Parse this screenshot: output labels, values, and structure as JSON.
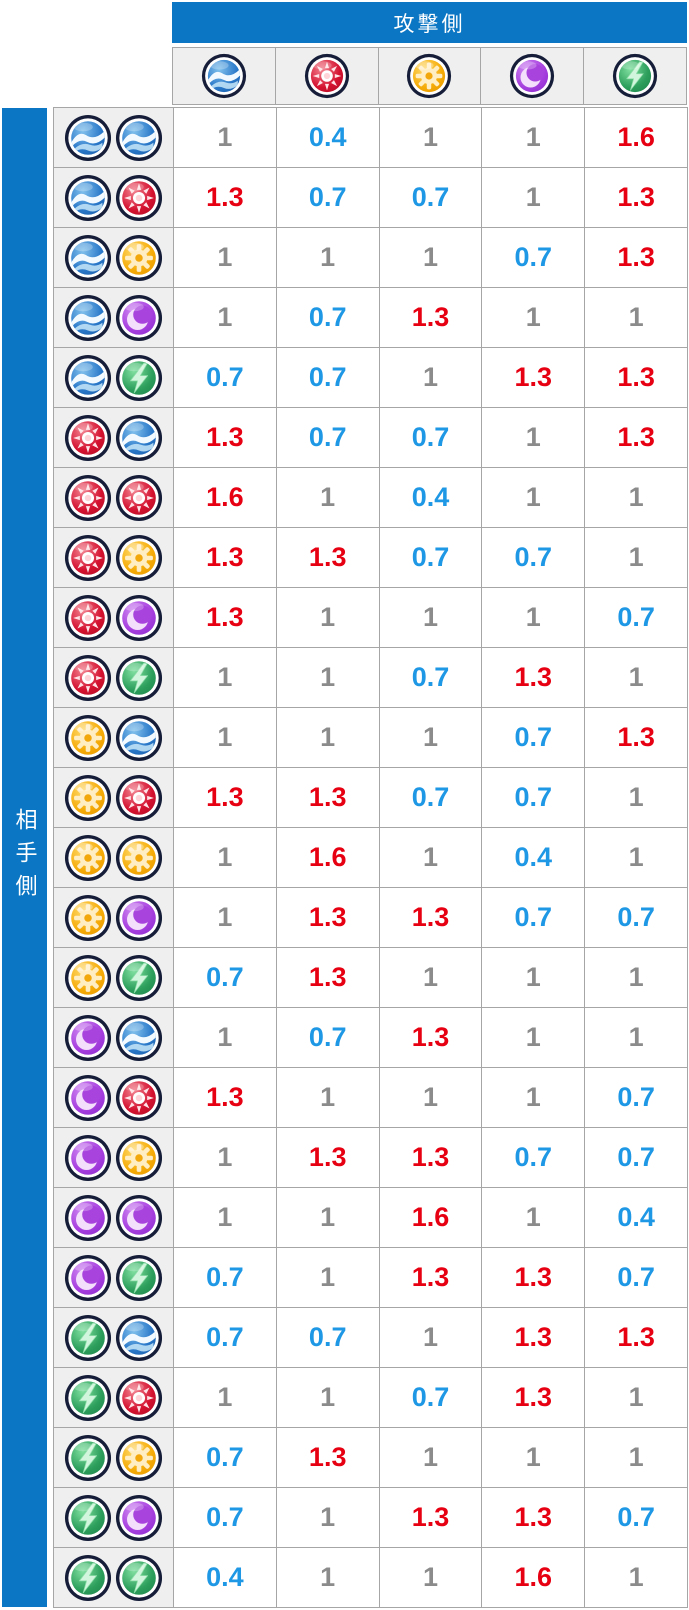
{
  "header": {
    "attack_label": "攻撃側",
    "opponent_label": "相手側"
  },
  "colors": {
    "up": "#e60012",
    "down": "#1e97e5",
    "neutral": "#8b8b8b",
    "accent_blue": "#0b76c3",
    "grid_border": "#a6a6a6",
    "header_cell_bg": "#efefef"
  },
  "table": {
    "columns": [
      "water",
      "fire",
      "gear",
      "moon",
      "lightning"
    ],
    "rows": [
      {
        "defender": [
          "water",
          "water"
        ],
        "values": [
          "1",
          "0.4",
          "1",
          "1",
          "1.6"
        ]
      },
      {
        "defender": [
          "water",
          "fire"
        ],
        "values": [
          "1.3",
          "0.7",
          "0.7",
          "1",
          "1.3"
        ]
      },
      {
        "defender": [
          "water",
          "gear"
        ],
        "values": [
          "1",
          "1",
          "1",
          "0.7",
          "1.3"
        ]
      },
      {
        "defender": [
          "water",
          "moon"
        ],
        "values": [
          "1",
          "0.7",
          "1.3",
          "1",
          "1"
        ]
      },
      {
        "defender": [
          "water",
          "lightning"
        ],
        "values": [
          "0.7",
          "0.7",
          "1",
          "1.3",
          "1.3"
        ]
      },
      {
        "defender": [
          "fire",
          "water"
        ],
        "values": [
          "1.3",
          "0.7",
          "0.7",
          "1",
          "1.3"
        ]
      },
      {
        "defender": [
          "fire",
          "fire"
        ],
        "values": [
          "1.6",
          "1",
          "0.4",
          "1",
          "1"
        ]
      },
      {
        "defender": [
          "fire",
          "gear"
        ],
        "values": [
          "1.3",
          "1.3",
          "0.7",
          "0.7",
          "1"
        ]
      },
      {
        "defender": [
          "fire",
          "moon"
        ],
        "values": [
          "1.3",
          "1",
          "1",
          "1",
          "0.7"
        ]
      },
      {
        "defender": [
          "fire",
          "lightning"
        ],
        "values": [
          "1",
          "1",
          "0.7",
          "1.3",
          "1"
        ]
      },
      {
        "defender": [
          "gear",
          "water"
        ],
        "values": [
          "1",
          "1",
          "1",
          "0.7",
          "1.3"
        ]
      },
      {
        "defender": [
          "gear",
          "fire"
        ],
        "values": [
          "1.3",
          "1.3",
          "0.7",
          "0.7",
          "1"
        ]
      },
      {
        "defender": [
          "gear",
          "gear"
        ],
        "values": [
          "1",
          "1.6",
          "1",
          "0.4",
          "1"
        ]
      },
      {
        "defender": [
          "gear",
          "moon"
        ],
        "values": [
          "1",
          "1.3",
          "1.3",
          "0.7",
          "0.7"
        ]
      },
      {
        "defender": [
          "gear",
          "lightning"
        ],
        "values": [
          "0.7",
          "1.3",
          "1",
          "1",
          "1"
        ]
      },
      {
        "defender": [
          "moon",
          "water"
        ],
        "values": [
          "1",
          "0.7",
          "1.3",
          "1",
          "1"
        ]
      },
      {
        "defender": [
          "moon",
          "fire"
        ],
        "values": [
          "1.3",
          "1",
          "1",
          "1",
          "0.7"
        ]
      },
      {
        "defender": [
          "moon",
          "gear"
        ],
        "values": [
          "1",
          "1.3",
          "1.3",
          "0.7",
          "0.7"
        ]
      },
      {
        "defender": [
          "moon",
          "moon"
        ],
        "values": [
          "1",
          "1",
          "1.6",
          "1",
          "0.4"
        ]
      },
      {
        "defender": [
          "moon",
          "lightning"
        ],
        "values": [
          "0.7",
          "1",
          "1.3",
          "1.3",
          "0.7"
        ]
      },
      {
        "defender": [
          "lightning",
          "water"
        ],
        "values": [
          "0.7",
          "0.7",
          "1",
          "1.3",
          "1.3"
        ]
      },
      {
        "defender": [
          "lightning",
          "fire"
        ],
        "values": [
          "1",
          "1",
          "0.7",
          "1.3",
          "1"
        ]
      },
      {
        "defender": [
          "lightning",
          "gear"
        ],
        "values": [
          "0.7",
          "1.3",
          "1",
          "1",
          "1"
        ]
      },
      {
        "defender": [
          "lightning",
          "moon"
        ],
        "values": [
          "0.7",
          "1",
          "1.3",
          "1.3",
          "0.7"
        ]
      },
      {
        "defender": [
          "lightning",
          "lightning"
        ],
        "values": [
          "0.4",
          "1",
          "1",
          "1.6",
          "1"
        ]
      }
    ]
  }
}
